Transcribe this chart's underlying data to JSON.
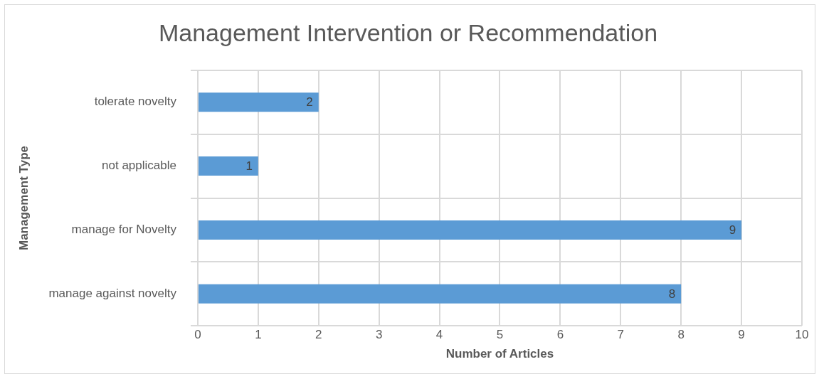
{
  "chart_data": {
    "type": "bar",
    "orientation": "horizontal",
    "title": "Management Intervention or Recommendation",
    "xlabel": "Number of Articles",
    "ylabel": "Management Type",
    "categories": [
      "tolerate novelty",
      "not applicable",
      "manage for Novelty",
      "manage against novelty"
    ],
    "values": [
      2,
      1,
      9,
      8
    ],
    "color": "#5b9bd5",
    "xlim": [
      0,
      10
    ],
    "xticks": [
      0,
      1,
      2,
      3,
      4,
      5,
      6,
      7,
      8,
      9,
      10
    ],
    "grid": true,
    "data_labels": true
  }
}
